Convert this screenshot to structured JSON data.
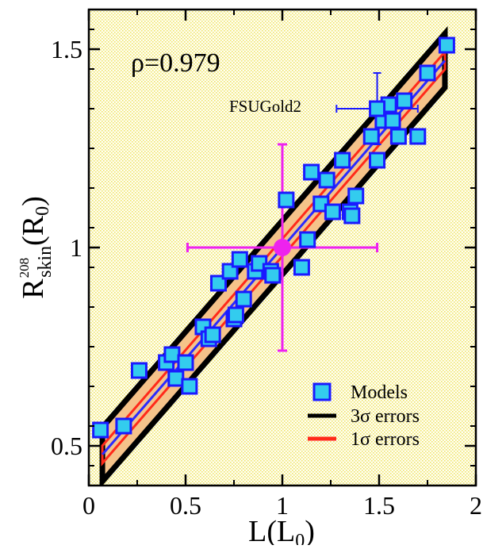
{
  "chart_data": {
    "type": "scatter",
    "xlabel": "L(L",
    "xlabel_sub": "0",
    "xlabel_close": ")",
    "ylabel": "R",
    "ylabel_sup": "208",
    "ylabel_sub": "skin",
    "ylabel_paren": "(R",
    "ylabel_paren_sub": "0",
    "ylabel_close": ")",
    "xlim": [
      0,
      2
    ],
    "ylim": [
      0.4,
      1.6
    ],
    "x_ticks": [
      0,
      0.5,
      1,
      1.5,
      2
    ],
    "x_tick_labels": [
      "0",
      "0.5",
      "1",
      "1.5",
      "2"
    ],
    "y_ticks": [
      0.5,
      1,
      1.5
    ],
    "y_tick_labels": [
      "0.5",
      "1",
      "1.5"
    ],
    "background": "dotted-yellow",
    "correlation_label": "ρ=0.979",
    "annotation": "FSUGold2",
    "fit_line": {
      "x0": 0.07,
      "x1": 1.84,
      "slope": 0.561,
      "intercept": 0.439
    },
    "bands": {
      "one_sigma": 0.022,
      "three_sigma": 0.068
    },
    "models": {
      "name": "Models",
      "points": [
        [
          0.06,
          0.54
        ],
        [
          0.18,
          0.55
        ],
        [
          0.26,
          0.69
        ],
        [
          0.4,
          0.71
        ],
        [
          0.43,
          0.73
        ],
        [
          0.45,
          0.67
        ],
        [
          0.5,
          0.71
        ],
        [
          0.52,
          0.65
        ],
        [
          0.59,
          0.8
        ],
        [
          0.62,
          0.77
        ],
        [
          0.64,
          0.78
        ],
        [
          0.67,
          0.91
        ],
        [
          0.73,
          0.94
        ],
        [
          0.75,
          0.82
        ],
        [
          0.76,
          0.83
        ],
        [
          0.78,
          0.97
        ],
        [
          0.8,
          0.87
        ],
        [
          0.86,
          0.94
        ],
        [
          0.88,
          0.96
        ],
        [
          0.94,
          0.94
        ],
        [
          0.95,
          0.93
        ],
        [
          1.02,
          1.12
        ],
        [
          1.1,
          0.95
        ],
        [
          1.13,
          1.02
        ],
        [
          1.15,
          1.19
        ],
        [
          1.2,
          1.11
        ],
        [
          1.23,
          1.17
        ],
        [
          1.26,
          1.09
        ],
        [
          1.31,
          1.22
        ],
        [
          1.35,
          1.09
        ],
        [
          1.36,
          1.08
        ],
        [
          1.38,
          1.13
        ],
        [
          1.46,
          1.28
        ],
        [
          1.49,
          1.22
        ],
        [
          1.52,
          1.32
        ],
        [
          1.55,
          1.36
        ],
        [
          1.57,
          1.32
        ],
        [
          1.6,
          1.28
        ],
        [
          1.63,
          1.37
        ],
        [
          1.7,
          1.28
        ],
        [
          1.75,
          1.44
        ],
        [
          1.85,
          1.51
        ]
      ]
    },
    "fsugold2": {
      "x": 1.49,
      "y": 1.35,
      "xerr": [
        0.21,
        0.21
      ],
      "yerr": [
        0.09,
        0.09
      ]
    },
    "reference": {
      "x": 1.0,
      "y": 1.0,
      "xerr": [
        0.49,
        0.49
      ],
      "yerr": [
        0.26,
        0.26
      ]
    },
    "legend": {
      "placement": "bottom-right",
      "entries": [
        "Models",
        "3σ errors",
        "1σ errors"
      ]
    },
    "colors": {
      "marker_fill": "#33ccee",
      "marker_edge": "#1a1aff",
      "fit_line": "#2a2aff",
      "one_sigma": "#ff2a1a",
      "band_fill": "#f5c38a",
      "three_sigma": "#000000",
      "reference": "#ee22ee",
      "fsugold_err": "#1a1aff",
      "background_dot": "#f2e86a"
    }
  }
}
